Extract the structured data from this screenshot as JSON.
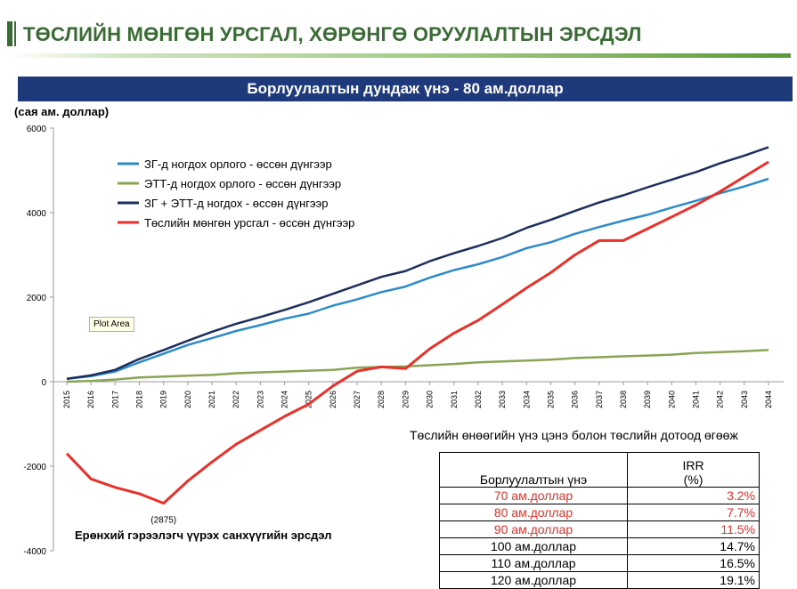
{
  "slide": {
    "title": "ТӨСЛИЙН МӨНГӨН УРСГАЛ, ХӨРӨНГӨ ОРУУЛАЛТЫН ЭРСДЭЛ",
    "banner": "Борлуулалтын дундаж үнэ - 80 ам.доллар",
    "units": "(сая ам. доллар)",
    "plot_area_tooltip": "Plot Area",
    "caption_left": "Ерөнхий гэрээлэгч үүрэх санхүүгийн эрсдэл",
    "table_title": "Төслийн өнөөгийн үнэ цэнэ болон төслийн дотоод өгөөж"
  },
  "chart_data": {
    "type": "line",
    "x": [
      "2015",
      "2016",
      "2017",
      "2018",
      "2019",
      "2020",
      "2021",
      "2022",
      "2023",
      "2024",
      "2025",
      "2026",
      "2027",
      "2028",
      "2029",
      "2030",
      "2031",
      "2032",
      "2033",
      "2034",
      "2035",
      "2036",
      "2037",
      "2038",
      "2039",
      "2040",
      "2041",
      "2042",
      "2043",
      "2044"
    ],
    "ylim": [
      -4000,
      6000
    ],
    "yticks": [
      "6000",
      "4000",
      "2000",
      "0",
      "-2000",
      "-4000"
    ],
    "grid": false,
    "legend_position": "top-left",
    "series": [
      {
        "name": "ЗГ-д ногдох орлого - өссөн дүнгээр",
        "color": "#2e8bc7",
        "values": [
          70,
          130,
          240,
          460,
          660,
          870,
          1030,
          1200,
          1340,
          1490,
          1610,
          1800,
          1950,
          2120,
          2250,
          2460,
          2640,
          2780,
          2950,
          3160,
          3300,
          3500,
          3660,
          3810,
          3950,
          4120,
          4280,
          4460,
          4620,
          4800
        ]
      },
      {
        "name": "ЭТТ-д ногдох орлого - өссөн дүнгээр",
        "color": "#8aa455",
        "values": [
          0,
          20,
          50,
          100,
          120,
          140,
          160,
          200,
          220,
          240,
          260,
          280,
          330,
          350,
          360,
          390,
          420,
          460,
          480,
          500,
          520,
          560,
          580,
          600,
          620,
          640,
          680,
          700,
          720,
          750
        ]
      },
      {
        "name": "ЗГ + ЭТТ-д ногдох - өссөн дүнгээр",
        "color": "#1b2e5c",
        "values": [
          70,
          150,
          280,
          540,
          750,
          970,
          1180,
          1370,
          1530,
          1700,
          1880,
          2080,
          2280,
          2480,
          2620,
          2850,
          3040,
          3210,
          3400,
          3640,
          3830,
          4040,
          4240,
          4410,
          4600,
          4780,
          4960,
          5170,
          5350,
          5550
        ]
      },
      {
        "name": "Төслийн мөнгөн урсгал - өссөн дүнгээр",
        "color": "#e8312a",
        "values": [
          -1700,
          -2300,
          -2500,
          -2650,
          -2875,
          -2350,
          -1900,
          -1480,
          -1150,
          -820,
          -530,
          -100,
          250,
          350,
          310,
          780,
          1150,
          1450,
          1830,
          2220,
          2580,
          3000,
          3340,
          3340,
          3620,
          3900,
          4180,
          4500,
          4850,
          5200
        ]
      }
    ],
    "annotations": [
      {
        "text": "(2875)",
        "x": "2019",
        "y": -2875
      }
    ]
  },
  "irr_table": {
    "header_price": "Борлуулалтын үнэ",
    "header_irr_line1": "IRR",
    "header_irr_line2": "(%)",
    "rows": [
      {
        "price": "70 ам.доллар",
        "irr": "3.2%",
        "highlight": true
      },
      {
        "price": "80 ам.доллар",
        "irr": "7.7%",
        "highlight": true
      },
      {
        "price": "90 ам.доллар",
        "irr": "11.5%",
        "highlight": true
      },
      {
        "price": "100 ам.доллар",
        "irr": "14.7%",
        "highlight": false
      },
      {
        "price": "110 ам.доллар",
        "irr": "16.5%",
        "highlight": false
      },
      {
        "price": "120 ам.доллар",
        "irr": "19.1%",
        "highlight": false
      }
    ]
  }
}
